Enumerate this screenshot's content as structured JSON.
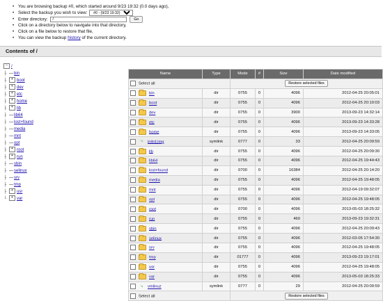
{
  "intro": {
    "line1": "You are browsing backup #0, which started around 9/23 19:32 (0.0 days ago),",
    "select_label": "Select the backup you wish to view:",
    "backup_option": "#0 - (9/23 19:32)",
    "enter_dir_label": "Enter directory:",
    "dir_value": "/",
    "go_label": "Go",
    "line4": "Click on a directory below to navigate into that directory,",
    "line5": "Click on a file below to restore that file,",
    "line6_pre": "You can view the backup",
    "line6_link": "history",
    "line6_post": "of the current directory."
  },
  "contents_title": "Contents of /",
  "tree": {
    "root": "/",
    "items": [
      {
        "name": "bin",
        "expandable": false
      },
      {
        "name": "boot",
        "expandable": true
      },
      {
        "name": "dev",
        "expandable": true
      },
      {
        "name": "etc",
        "expandable": true
      },
      {
        "name": "home",
        "expandable": true
      },
      {
        "name": "lib",
        "expandable": true
      },
      {
        "name": "lib64",
        "expandable": false
      },
      {
        "name": "lost+found",
        "expandable": false
      },
      {
        "name": "media",
        "expandable": false
      },
      {
        "name": "mnt",
        "expandable": false
      },
      {
        "name": "opt",
        "expandable": false
      },
      {
        "name": "root",
        "expandable": true
      },
      {
        "name": "run",
        "expandable": true
      },
      {
        "name": "sbin",
        "expandable": false
      },
      {
        "name": "selinux",
        "expandable": false
      },
      {
        "name": "srv",
        "expandable": false
      },
      {
        "name": "tmp",
        "expandable": false
      },
      {
        "name": "usr",
        "expandable": true
      },
      {
        "name": "var",
        "expandable": true
      }
    ]
  },
  "table": {
    "headers": {
      "name": "Name",
      "type": "Type",
      "mode": "Mode",
      "num": "#",
      "size": "Size",
      "date": "Date modified"
    },
    "select_all": "Select all",
    "restore_label": "Restore selected files",
    "rows": [
      {
        "name": "bin",
        "type": "dir",
        "mode": "0755",
        "num": "0",
        "size": "4096",
        "date": "2012-04-25 20:05:01"
      },
      {
        "name": "boot",
        "type": "dir",
        "mode": "0755",
        "num": "0",
        "size": "4096",
        "date": "2012-04-25 20:10:03"
      },
      {
        "name": "dev",
        "type": "dir",
        "mode": "0755",
        "num": "0",
        "size": "3900",
        "date": "2013-09-23 14:32:14"
      },
      {
        "name": "etc",
        "type": "dir",
        "mode": "0755",
        "num": "0",
        "size": "4096",
        "date": "2013-09-23 14:33:28"
      },
      {
        "name": "home",
        "type": "dir",
        "mode": "0755",
        "num": "0",
        "size": "4096",
        "date": "2013-09-23 14:33:05"
      },
      {
        "name": "initrd.img",
        "type": "symlink",
        "mode": "0777",
        "num": "0",
        "size": "33",
        "date": "2012-04-25 20:09:59"
      },
      {
        "name": "lib",
        "type": "dir",
        "mode": "0755",
        "num": "0",
        "size": "4096",
        "date": "2012-04-25 20:09:30"
      },
      {
        "name": "lib64",
        "type": "dir",
        "mode": "0755",
        "num": "0",
        "size": "4096",
        "date": "2012-04-25 19:44:43"
      },
      {
        "name": "lost+found",
        "type": "dir",
        "mode": "0700",
        "num": "0",
        "size": "16384",
        "date": "2012-04-25 20:14:20"
      },
      {
        "name": "media",
        "type": "dir",
        "mode": "0755",
        "num": "0",
        "size": "4096",
        "date": "2012-04-25 19:48:05"
      },
      {
        "name": "mnt",
        "type": "dir",
        "mode": "0755",
        "num": "0",
        "size": "4096",
        "date": "2012-04-19 09:32:07"
      },
      {
        "name": "opt",
        "type": "dir",
        "mode": "0755",
        "num": "0",
        "size": "4096",
        "date": "2012-04-25 19:48:05"
      },
      {
        "name": "root",
        "type": "dir",
        "mode": "0700",
        "num": "0",
        "size": "4096",
        "date": "2013-05-03 18:25:32"
      },
      {
        "name": "run",
        "type": "dir",
        "mode": "0755",
        "num": "0",
        "size": "460",
        "date": "2013-09-23 19:32:31"
      },
      {
        "name": "sbin",
        "type": "dir",
        "mode": "0755",
        "num": "0",
        "size": "4096",
        "date": "2012-04-25 20:09:43"
      },
      {
        "name": "selinux",
        "type": "dir",
        "mode": "0755",
        "num": "0",
        "size": "4096",
        "date": "2012-03-05 17:54:30"
      },
      {
        "name": "srv",
        "type": "dir",
        "mode": "0755",
        "num": "0",
        "size": "4096",
        "date": "2012-04-25 19:48:05"
      },
      {
        "name": "tmp",
        "type": "dir",
        "mode": "01777",
        "num": "0",
        "size": "4096",
        "date": "2013-09-23 19:17:01"
      },
      {
        "name": "usr",
        "type": "dir",
        "mode": "0755",
        "num": "0",
        "size": "4096",
        "date": "2012-04-25 19:48:05"
      },
      {
        "name": "var",
        "type": "dir",
        "mode": "0755",
        "num": "0",
        "size": "4096",
        "date": "2013-05-03 18:25:33"
      },
      {
        "name": "vmlinuz",
        "type": "symlink",
        "mode": "0777",
        "num": "0",
        "size": "29",
        "date": "2012-04-25 20:09:59"
      }
    ]
  }
}
